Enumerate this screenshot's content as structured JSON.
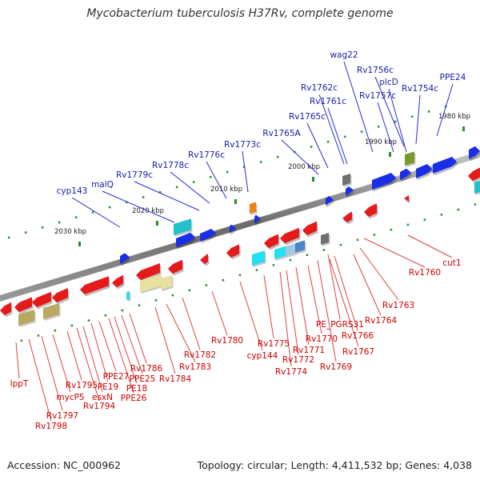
{
  "title": "Mycobacterium tuberculosis H37Rv, complete genome",
  "footer": {
    "accession": "Accession: NC_000962",
    "topology": "Topology: circular; Length: 4,411,532 bp; Genes: 4,038"
  },
  "colors": {
    "forward_gene": "#1a2ee8",
    "reverse_gene": "#e61a1a",
    "forward_label": "#1a1aaa",
    "reverse_label": "#cc0000",
    "backbone": "#808080",
    "tick": "#2e8b2e"
  },
  "kbp_labels": [
    "1980 kbp",
    "1990 kbp",
    "2000 kbp",
    "2010 kbp",
    "2020 kbp",
    "2030 kbp"
  ],
  "forward_labels": [
    "wag22",
    "Rv1756c",
    "plcD",
    "PPE24",
    "Rv1757c",
    "Rv1754c",
    "Rv1762c",
    "Rv1761c",
    "Rv1765c",
    "Rv1765A",
    "Rv1773c",
    "Rv1776c",
    "Rv1778c",
    "Rv1779c",
    "malQ",
    "cyp143"
  ],
  "reverse_labels": [
    "cut1",
    "Rv1760",
    "Rv1763",
    "Rv1764",
    "PE_PGRS31",
    "Rv1766",
    "Rv1767",
    "Rv1769",
    "Rv1770",
    "Rv1771",
    "Rv1772",
    "Rv1774",
    "Rv1775",
    "cyp144",
    "Rv1780",
    "Rv1782",
    "Rv1783",
    "Rv1784",
    "Rv1786",
    "PPE25",
    "PE18",
    "PPE26",
    "PPE27",
    "PE19",
    "esxN",
    "Rv1794",
    "Rv1795",
    "mycP5",
    "lppT",
    "Rv1797",
    "Rv1798"
  ]
}
